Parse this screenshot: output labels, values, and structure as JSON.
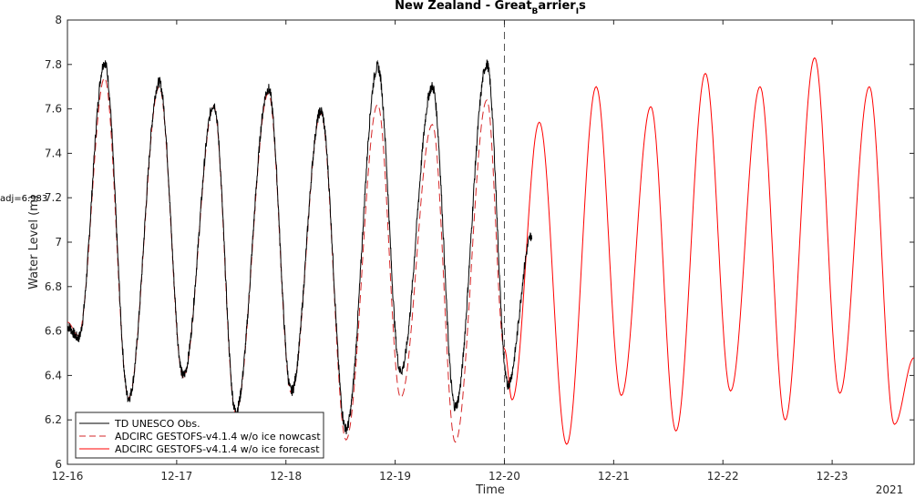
{
  "chart_data": {
    "type": "line",
    "title_main": "New Zealand - Great",
    "title_sub1": "B",
    "title_mid": "arrier",
    "title_sub2": "I",
    "title_end": "s",
    "xlabel": "Time",
    "ylabel": "Water Level (m)",
    "adj_note": "adj=6.983",
    "xlim": [
      0,
      7.75
    ],
    "ylim": [
      6,
      8
    ],
    "x_units": "days since 12-16 00:00",
    "x_ticks": [
      {
        "x": 0,
        "label": "12-16"
      },
      {
        "x": 1,
        "label": "12-17"
      },
      {
        "x": 2,
        "label": "12-18"
      },
      {
        "x": 3,
        "label": "12-19"
      },
      {
        "x": 4,
        "label": "12-20"
      },
      {
        "x": 5,
        "label": "12-21"
      },
      {
        "x": 6,
        "label": "12-22"
      },
      {
        "x": 7,
        "label": "12-23"
      }
    ],
    "x_corner_label": "2021",
    "y_ticks": [
      {
        "y": 6,
        "label": "6"
      },
      {
        "y": 6.2,
        "label": "6.2"
      },
      {
        "y": 6.4,
        "label": "6.4"
      },
      {
        "y": 6.6,
        "label": "6.6"
      },
      {
        "y": 6.8,
        "label": "6.8"
      },
      {
        "y": 7,
        "label": "7"
      },
      {
        "y": 7.2,
        "label": "7.2"
      },
      {
        "y": 7.4,
        "label": "7.4"
      },
      {
        "y": 7.6,
        "label": "7.6"
      },
      {
        "y": 7.8,
        "label": "7.8"
      },
      {
        "y": 8,
        "label": "8"
      }
    ],
    "nowcast_end_x": 4.0,
    "grid": false,
    "legend_position": "bottom-left",
    "series": [
      {
        "name": "TD UNESCO Obs.",
        "color": "#000000",
        "style": "solid",
        "extrema": [
          [
            0.0,
            6.62
          ],
          [
            0.1,
            6.57
          ],
          [
            0.34,
            7.81
          ],
          [
            0.56,
            6.3
          ],
          [
            0.84,
            7.72
          ],
          [
            1.06,
            6.4
          ],
          [
            1.34,
            7.62
          ],
          [
            1.54,
            6.24
          ],
          [
            1.84,
            7.69
          ],
          [
            2.05,
            6.33
          ],
          [
            2.32,
            7.59
          ],
          [
            2.55,
            6.16
          ],
          [
            2.84,
            7.79
          ],
          [
            3.05,
            6.42
          ],
          [
            3.34,
            7.7
          ],
          [
            3.55,
            6.26
          ],
          [
            3.84,
            7.8
          ],
          [
            4.03,
            6.36
          ],
          [
            4.25,
            7.03
          ]
        ]
      },
      {
        "name": "ADCIRC GESTOFS-v4.1.4 w/o ice nowcast",
        "color": "#d62728",
        "style": "dashed",
        "extrema": [
          [
            0.0,
            6.64
          ],
          [
            0.1,
            6.58
          ],
          [
            0.34,
            7.74
          ],
          [
            0.56,
            6.3
          ],
          [
            0.84,
            7.7
          ],
          [
            1.06,
            6.39
          ],
          [
            1.34,
            7.61
          ],
          [
            1.54,
            6.23
          ],
          [
            1.84,
            7.67
          ],
          [
            2.05,
            6.32
          ],
          [
            2.32,
            7.58
          ],
          [
            2.55,
            6.11
          ],
          [
            2.84,
            7.62
          ],
          [
            3.05,
            6.3
          ],
          [
            3.34,
            7.53
          ],
          [
            3.55,
            6.1
          ],
          [
            3.84,
            7.64
          ],
          [
            4.0,
            6.52
          ]
        ]
      },
      {
        "name": "ADCIRC GESTOFS-v4.1.4 w/o ice forecast",
        "color": "#ff0000",
        "style": "solid",
        "extrema": [
          [
            4.0,
            6.52
          ],
          [
            4.07,
            6.29
          ],
          [
            4.32,
            7.54
          ],
          [
            4.57,
            6.09
          ],
          [
            4.84,
            7.7
          ],
          [
            5.07,
            6.31
          ],
          [
            5.34,
            7.61
          ],
          [
            5.57,
            6.15
          ],
          [
            5.84,
            7.76
          ],
          [
            6.07,
            6.33
          ],
          [
            6.34,
            7.7
          ],
          [
            6.57,
            6.2
          ],
          [
            6.84,
            7.83
          ],
          [
            7.07,
            6.32
          ],
          [
            7.34,
            7.7
          ],
          [
            7.57,
            6.18
          ],
          [
            7.75,
            6.48
          ]
        ]
      }
    ]
  }
}
